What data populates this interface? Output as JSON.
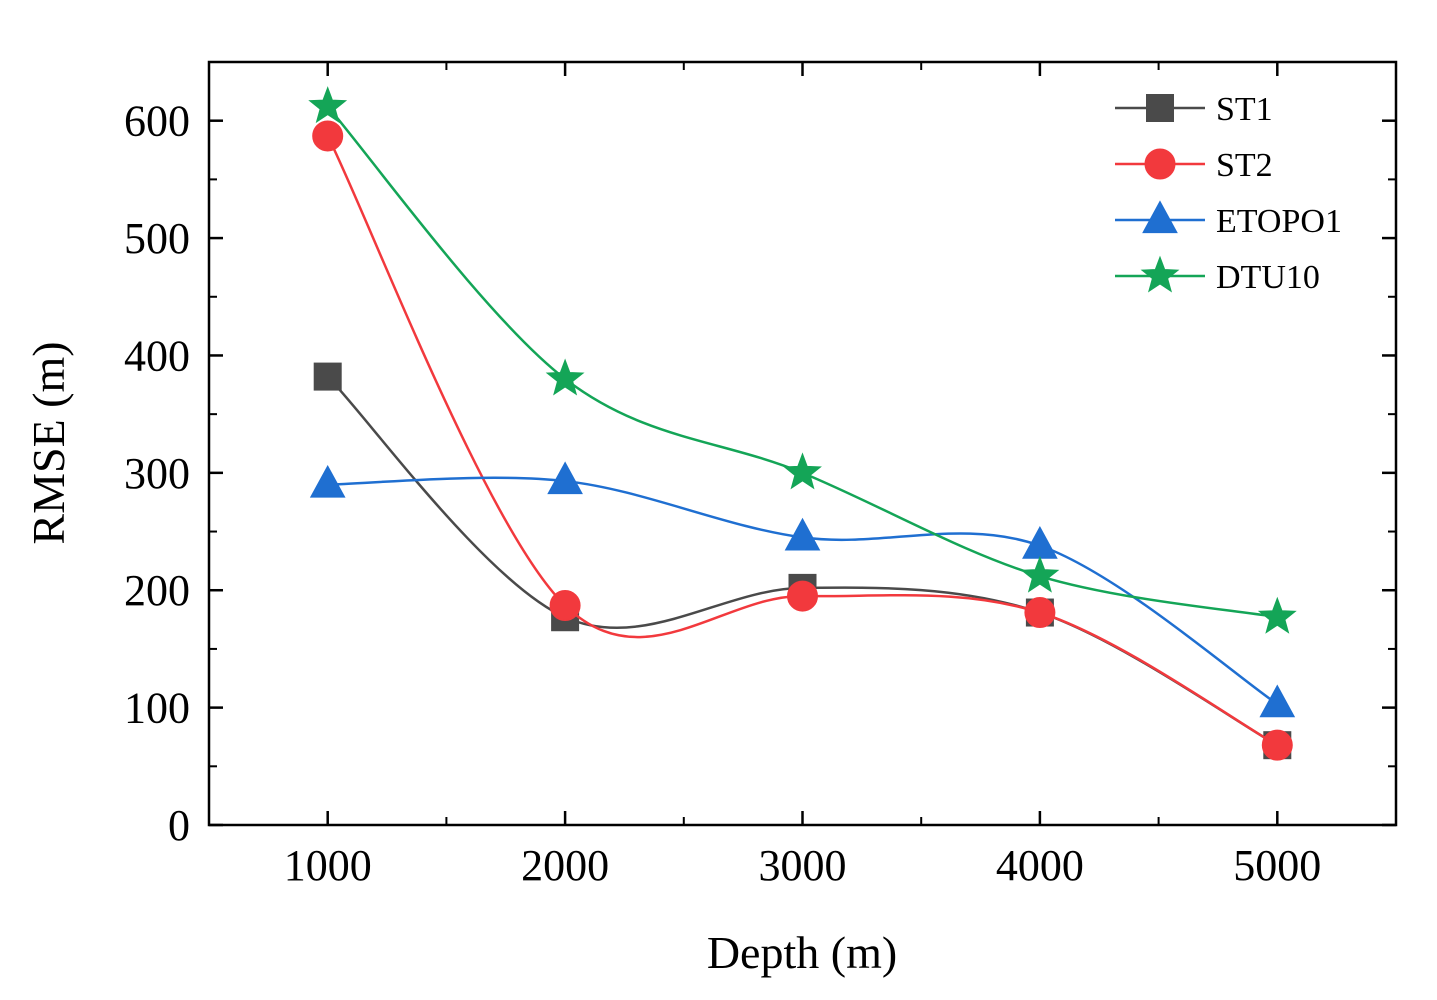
{
  "chart_data": {
    "type": "line",
    "xlabel": "Depth (m)",
    "ylabel": "RMSE (m)",
    "x": [
      1000,
      2000,
      3000,
      4000,
      5000
    ],
    "xlim": [
      500,
      5500
    ],
    "ylim": [
      0,
      650
    ],
    "xticks": [
      1000,
      2000,
      3000,
      4000,
      5000
    ],
    "yticks": [
      0,
      100,
      200,
      300,
      400,
      500,
      600
    ],
    "smooth": true,
    "grid": false,
    "legend_position": "top-right",
    "series": [
      {
        "name": "ST1",
        "marker": "square",
        "color": "#4a4a4a",
        "values": [
          382,
          177,
          202,
          181,
          68
        ]
      },
      {
        "name": "ST2",
        "marker": "circle",
        "color": "#f2393d",
        "values": [
          587,
          187,
          195,
          181,
          68
        ]
      },
      {
        "name": "ETOPO1",
        "marker": "triangle",
        "color": "#1f6fd1",
        "values": [
          290,
          293,
          245,
          238,
          103
        ]
      },
      {
        "name": "DTU10",
        "marker": "star",
        "color": "#14a557",
        "values": [
          612,
          380,
          300,
          212,
          177
        ]
      }
    ]
  }
}
